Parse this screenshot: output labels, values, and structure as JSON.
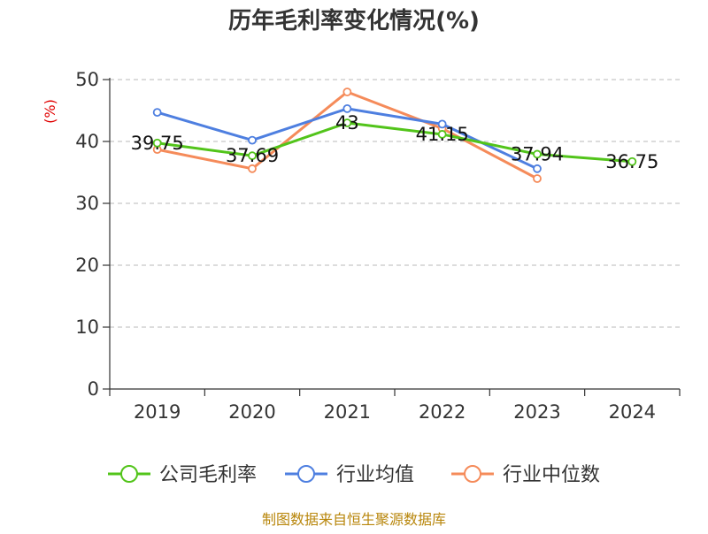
{
  "chart_data": {
    "type": "line",
    "title": "历年毛利率变化情况(%)",
    "ylabel": "(%)",
    "xlabel": "",
    "categories": [
      "2019",
      "2020",
      "2021",
      "2022",
      "2023",
      "2024"
    ],
    "y_ticks": [
      "0",
      "10",
      "20",
      "30",
      "40",
      "50"
    ],
    "ylim": [
      0,
      50
    ],
    "grid": true,
    "legend_position": "bottom",
    "series": [
      {
        "name": "公司毛利率",
        "color": "#52c41a",
        "values": [
          39.75,
          37.69,
          43,
          41.15,
          37.94,
          36.75
        ],
        "labels": [
          "39.75",
          "37.69",
          "43",
          "41.15",
          "37.94",
          "36.75"
        ]
      },
      {
        "name": "行业均值",
        "color": "#4e7fe0",
        "values": [
          44.7,
          40.2,
          45.3,
          42.8,
          35.6,
          null
        ]
      },
      {
        "name": "行业中位数",
        "color": "#f58b5a",
        "values": [
          38.7,
          35.6,
          48.0,
          42.1,
          34.0,
          null
        ]
      }
    ]
  },
  "source_text": "制图数据来自恒生聚源数据库"
}
